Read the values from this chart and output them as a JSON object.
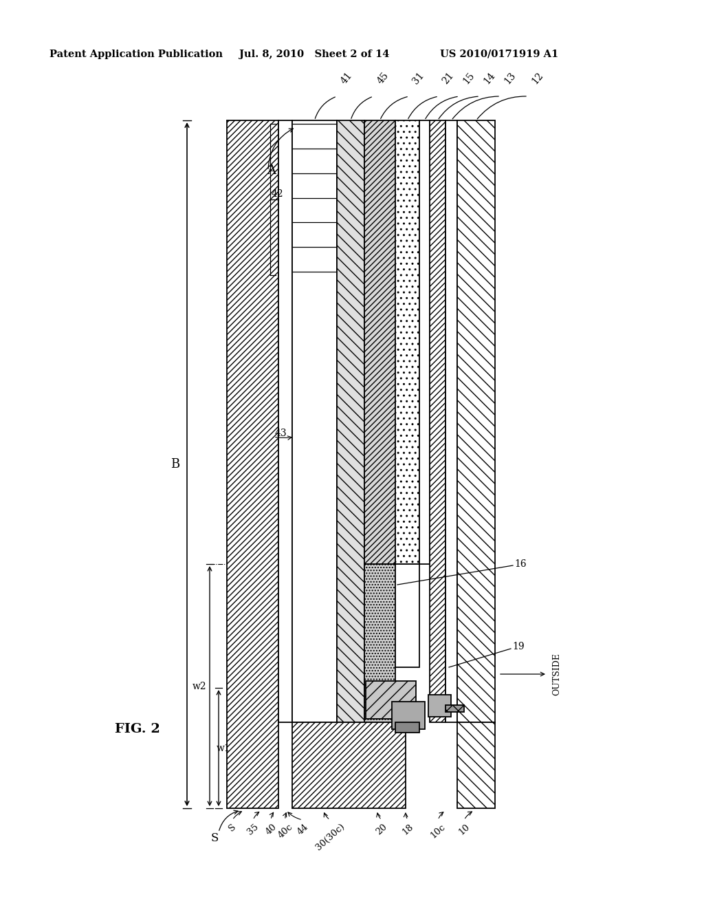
{
  "header_left": "Patent Application Publication",
  "header_mid": "Jul. 8, 2010   Sheet 2 of 14",
  "header_right": "US 2010/0171919 A1",
  "fig_label": "FIG. 2",
  "bg_color": "#ffffff"
}
